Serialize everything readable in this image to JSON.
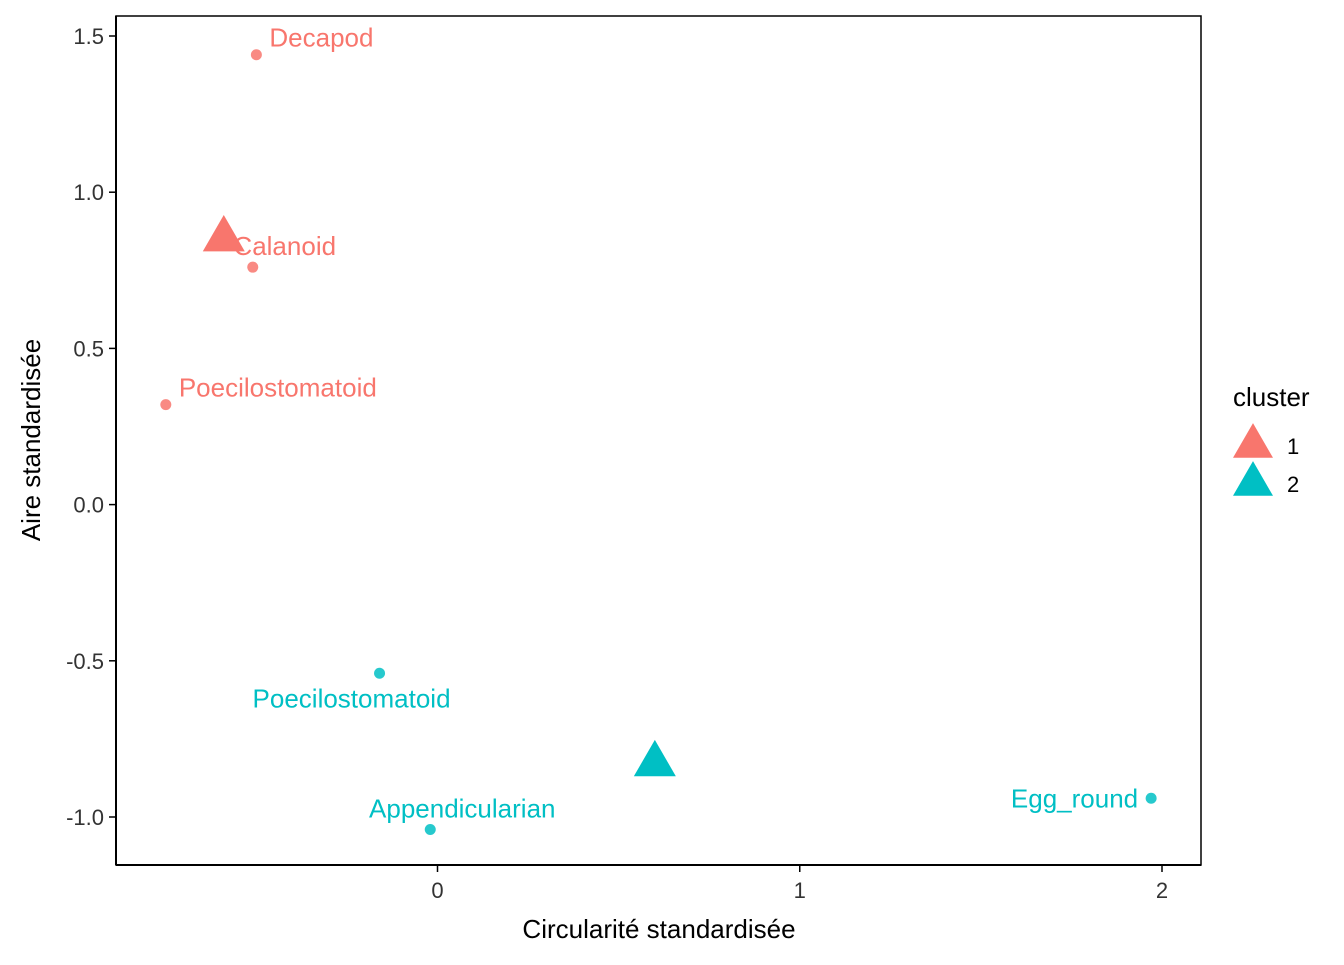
{
  "chart_data": {
    "type": "scatter",
    "title": "",
    "xlabel": "Circularité standardisée",
    "ylabel": "Aire standardisée",
    "xlim": [
      -0.88,
      2.1
    ],
    "ylim": [
      -1.15,
      1.56
    ],
    "x_ticks": [
      0,
      1,
      2
    ],
    "x_tick_labels": [
      "0",
      "1",
      "2"
    ],
    "y_ticks": [
      -1.0,
      -0.5,
      0.0,
      0.5,
      1.0,
      1.5
    ],
    "y_tick_labels": [
      "-1.0",
      "-0.5",
      "0.0",
      "0.5",
      "1.0",
      "1.5"
    ],
    "grid": false,
    "legend": {
      "title": "cluster",
      "position": "right",
      "entries": [
        {
          "label": "1",
          "color": "#F8766D",
          "shape": "triangle"
        },
        {
          "label": "2",
          "color": "#00BFC4",
          "shape": "triangle"
        }
      ]
    },
    "colors": {
      "cluster_1": "#F8766D",
      "cluster_2": "#00BFC4"
    },
    "points": [
      {
        "label": "Decapod",
        "x": -0.5,
        "y": 1.44,
        "cluster": "1",
        "label_pos": "right"
      },
      {
        "label": "Calanoid",
        "x": -0.51,
        "y": 0.76,
        "cluster": "1",
        "label_pos": "above"
      },
      {
        "label": "Poecilostomatoid",
        "x": -0.75,
        "y": 0.32,
        "cluster": "1",
        "label_pos": "right"
      },
      {
        "label": "Poecilostomatoid",
        "x": -0.16,
        "y": -0.54,
        "cluster": "2",
        "label_pos": "below"
      },
      {
        "label": "Appendicularian",
        "x": -0.02,
        "y": -1.04,
        "cluster": "2",
        "label_pos": "above"
      },
      {
        "label": "Egg_round",
        "x": 1.97,
        "y": -0.94,
        "cluster": "2",
        "label_pos": "left"
      }
    ],
    "centroids": [
      {
        "cluster": "1",
        "x": -0.59,
        "y": 0.85
      },
      {
        "cluster": "2",
        "x": 0.6,
        "y": -0.83
      }
    ]
  }
}
